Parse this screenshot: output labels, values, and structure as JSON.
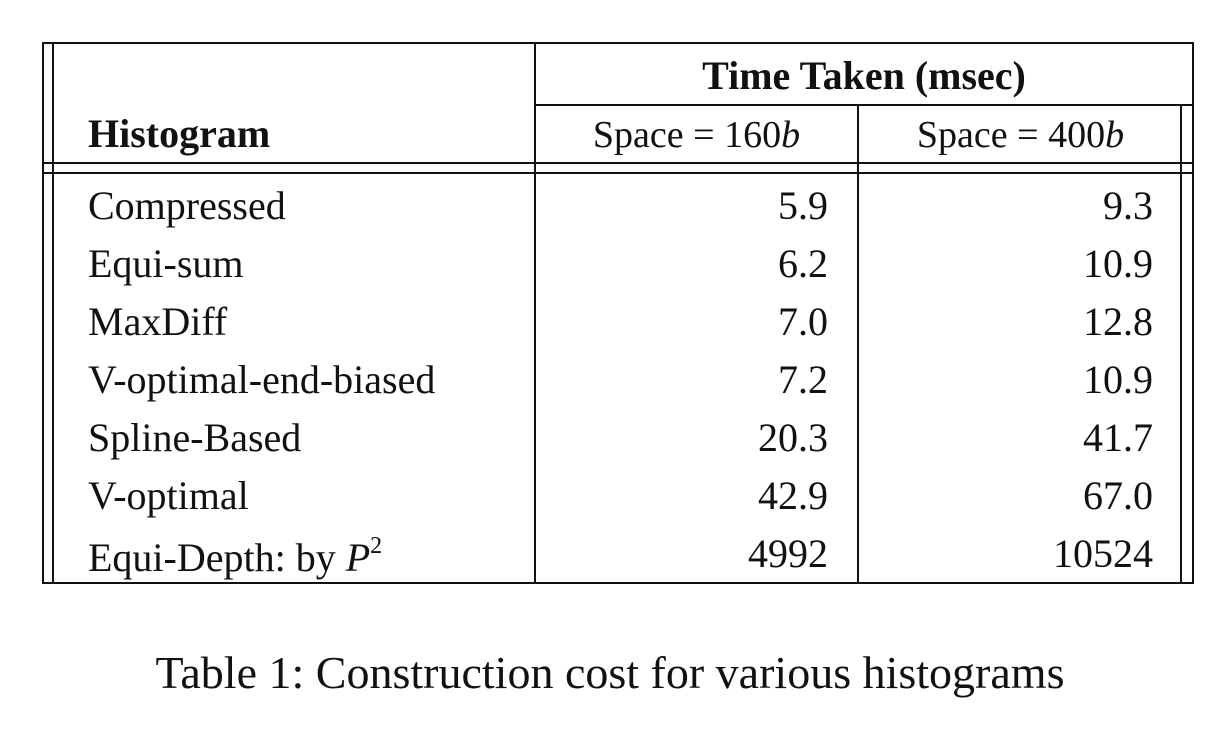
{
  "table": {
    "column_group_header": "Time Taken (msec)",
    "row_header": "Histogram",
    "columns": [
      {
        "prefix": "Space = ",
        "value": "160",
        "unit": "b"
      },
      {
        "prefix": "Space = ",
        "value": "400",
        "unit": "b"
      }
    ],
    "rows": [
      {
        "name": "Compressed",
        "v160": "5.9",
        "v400": "9.3"
      },
      {
        "name": "Equi-sum",
        "v160": "6.2",
        "v400": "10.9"
      },
      {
        "name": "MaxDiff",
        "v160": "7.0",
        "v400": "12.8"
      },
      {
        "name": "V-optimal-end-biased",
        "v160": "7.2",
        "v400": "10.9"
      },
      {
        "name": "Spline-Based",
        "v160": "20.3",
        "v400": "41.7"
      },
      {
        "name": "V-optimal",
        "v160": "42.9",
        "v400": "67.0"
      },
      {
        "name": "Equi-Depth: by ",
        "name_var": "P",
        "name_exp": "2",
        "v160": "4992",
        "v400": "10524"
      }
    ]
  },
  "caption": "Table 1: Construction cost for various histograms"
}
